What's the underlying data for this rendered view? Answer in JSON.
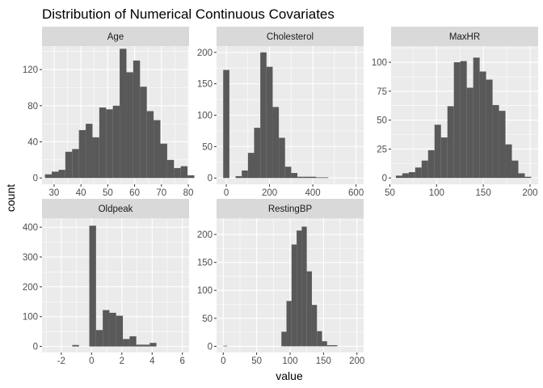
{
  "chart_data": {
    "type": "bar",
    "title": "Distribution of Numerical Continuous Covariates",
    "xlabel": "value",
    "ylabel": "count",
    "colors": {
      "bar": "#595959",
      "panel": "#ebebeb",
      "strip": "#d9d9d9",
      "grid_major": "#ffffff",
      "tick_text": "#4d4d4d"
    },
    "grid": true,
    "facets": [
      {
        "name": "Age",
        "xlim": [
          25.5,
          80.3
        ],
        "ylim": [
          -7,
          146
        ],
        "xticks": [
          30,
          40,
          50,
          60,
          70,
          80
        ],
        "yticks": [
          0,
          40,
          80,
          120
        ],
        "bin_start": 26.6,
        "bin_width": 2.53,
        "values": [
          4,
          7,
          9,
          29,
          32,
          53,
          60,
          45,
          78,
          76,
          80,
          143,
          117,
          130,
          101,
          74,
          64,
          38,
          20,
          11,
          13,
          3
        ]
      },
      {
        "name": "Cholesterol",
        "xlim": [
          -45,
          635
        ],
        "ylim": [
          -10,
          210
        ],
        "xticks": [
          0,
          200,
          400,
          600
        ],
        "yticks": [
          0,
          50,
          100,
          150,
          200
        ],
        "bin_start": -14.3,
        "bin_width": 28.6,
        "values": [
          172,
          0,
          3,
          12,
          40,
          80,
          200,
          177,
          113,
          64,
          18,
          8,
          2,
          2,
          2,
          1,
          1
        ]
      },
      {
        "name": "MaxHR",
        "xlim": [
          51.3,
          208.7
        ],
        "ylim": [
          -5.5,
          114
        ],
        "xticks": [
          50,
          100,
          150,
          200
        ],
        "yticks": [
          0,
          25,
          50,
          75,
          100
        ],
        "bin_start": 56.4,
        "bin_width": 6.9,
        "values": [
          2,
          4,
          5,
          9,
          15,
          24,
          46,
          35,
          62,
          100,
          101,
          78,
          104,
          92,
          85,
          63,
          58,
          29,
          15,
          4,
          1
        ]
      },
      {
        "name": "Oldpeak",
        "xlim": [
          -3.27,
          6.44
        ],
        "ylim": [
          -20,
          430
        ],
        "xticks": [
          -2,
          0,
          2,
          4,
          6
        ],
        "yticks": [
          0,
          100,
          200,
          300,
          400
        ],
        "bin_start": -0.147,
        "bin_width": 0.443,
        "values": [
          405,
          55,
          122,
          113,
          103,
          25,
          34,
          6,
          6,
          12
        ],
        "extra_bars": [
          {
            "x0": -1.27,
            "x1": -0.83,
            "value": 5
          }
        ]
      },
      {
        "name": "RestingBP",
        "xlim": [
          -10,
          210
        ],
        "ylim": [
          -11,
          229
        ],
        "xticks": [
          0,
          50,
          100,
          150,
          200
        ],
        "yticks": [
          0,
          50,
          100,
          150,
          200
        ],
        "bin_start": 87,
        "bin_width": 7.6,
        "values": [
          26,
          81,
          182,
          207,
          214,
          134,
          74,
          27,
          9,
          2,
          2
        ],
        "extra_bars": [
          {
            "x0": 0,
            "x1": 6,
            "value": 1
          }
        ]
      }
    ]
  }
}
